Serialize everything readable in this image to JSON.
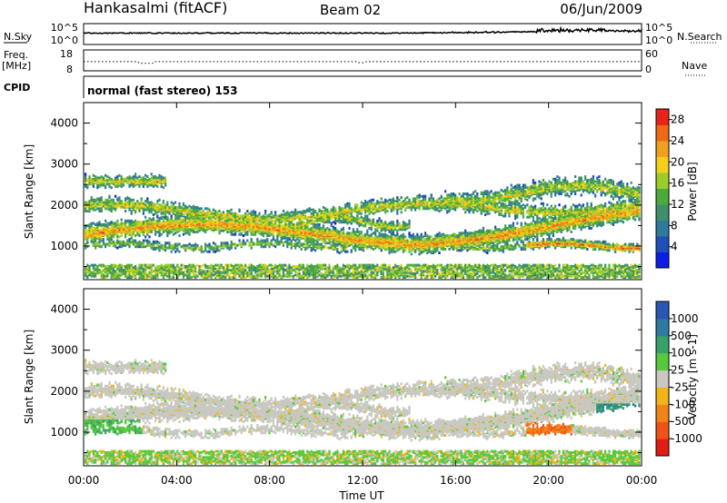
{
  "header": {
    "station": "Hankasalmi (fitACF)",
    "beam": "Beam 02",
    "date": "06/Jun/2009"
  },
  "noise_panel": {
    "left_label": "N.Sky",
    "right_label": "N.Search",
    "left_ticks": [
      "10^5",
      "10^0"
    ],
    "right_ticks": [
      "10^5",
      "10^0"
    ]
  },
  "freq_panel": {
    "left_label_1": "Freq.",
    "left_label_2": "[MHz]",
    "left_ticks": [
      "18",
      "8"
    ],
    "right_label": "Nave",
    "right_ticks": [
      "60",
      "0"
    ],
    "freq_range_mhz": [
      8,
      18
    ],
    "nave_range": [
      0,
      60
    ],
    "typical_freq_mhz": 12.4
  },
  "cpid_panel": {
    "label": "CPID",
    "mode": "normal (fast stereo) 153"
  },
  "x_axis": {
    "label": "Time UT",
    "ticks": [
      "00:00",
      "04:00",
      "08:00",
      "12:00",
      "16:00",
      "20:00",
      "00:00"
    ],
    "range_hours": [
      0,
      24
    ]
  },
  "chart_data": [
    {
      "type": "heatmap",
      "quantity": "power",
      "ylabel": "Slant Range [km]",
      "ylim": [
        180,
        4500
      ],
      "yticks": [
        1000,
        2000,
        3000,
        4000
      ],
      "colorbar_label": "Power [dB]",
      "colorbar_ticks": [
        "4",
        "8",
        "12",
        "16",
        "20",
        "24",
        "28"
      ],
      "colorbar_range": [
        0,
        30
      ],
      "colors": [
        "#0a1ee8",
        "#1f4fb8",
        "#2f7a9a",
        "#3f8f6a",
        "#4caa3c",
        "#9ccc2a",
        "#f2d01c",
        "#f0a01e",
        "#ee6a16",
        "#e8241a"
      ]
    },
    {
      "type": "heatmap",
      "quantity": "velocity",
      "ylabel": "Slant Range [km]",
      "ylim": [
        180,
        4500
      ],
      "yticks": [
        1000,
        2000,
        3000,
        4000
      ],
      "colorbar_label": "Velocity [m s-1]",
      "colorbar_ticks": [
        "1000",
        "500",
        "100",
        "25",
        "-25",
        "-100",
        "-500",
        "-1000"
      ],
      "colors": [
        "#2a56b4",
        "#2e7aa0",
        "#38a06a",
        "#58c83c",
        "#c8c8c0",
        "#f0b418",
        "#f08418",
        "#ee5418",
        "#e01c14"
      ]
    }
  ]
}
